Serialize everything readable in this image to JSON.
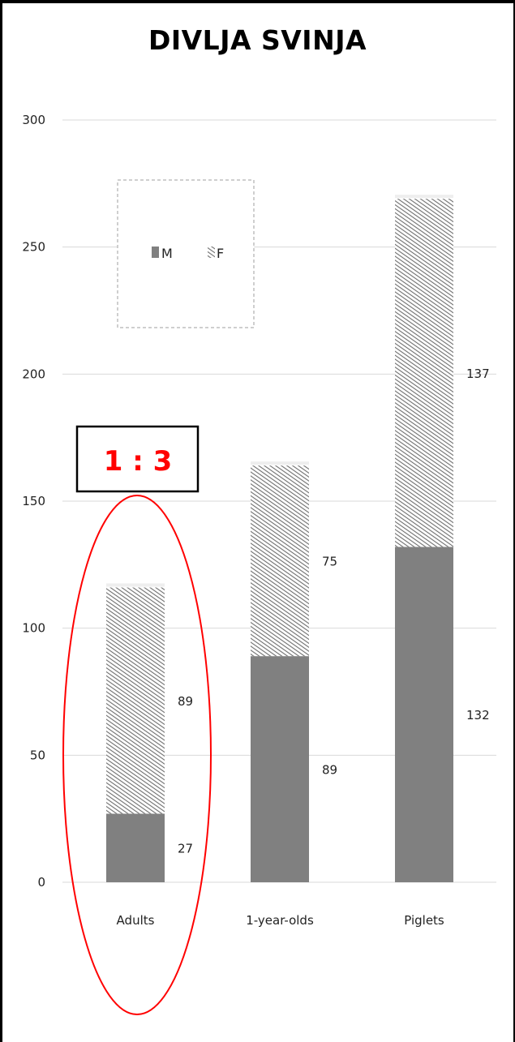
{
  "title": "DIVLJA SVINJA",
  "annotation": {
    "ratio_text": "1 : 3",
    "color": "#ff0000"
  },
  "colors": {
    "male": "#808080",
    "female_hatch": "#6e6e6e",
    "grid": "#d9d9d9"
  },
  "chart_data": {
    "type": "bar",
    "stacked": true,
    "categories": [
      "Adults",
      "1-year-olds",
      "Piglets"
    ],
    "series": [
      {
        "name": "M",
        "values": [
          27,
          89,
          132
        ],
        "fill": "solid"
      },
      {
        "name": "F",
        "values": [
          89,
          75,
          137
        ],
        "fill": "hatched"
      }
    ],
    "ylim": [
      0,
      300
    ],
    "yticks": [
      0,
      50,
      100,
      150,
      200,
      250,
      300
    ],
    "grid": true,
    "legend": "top-left"
  }
}
